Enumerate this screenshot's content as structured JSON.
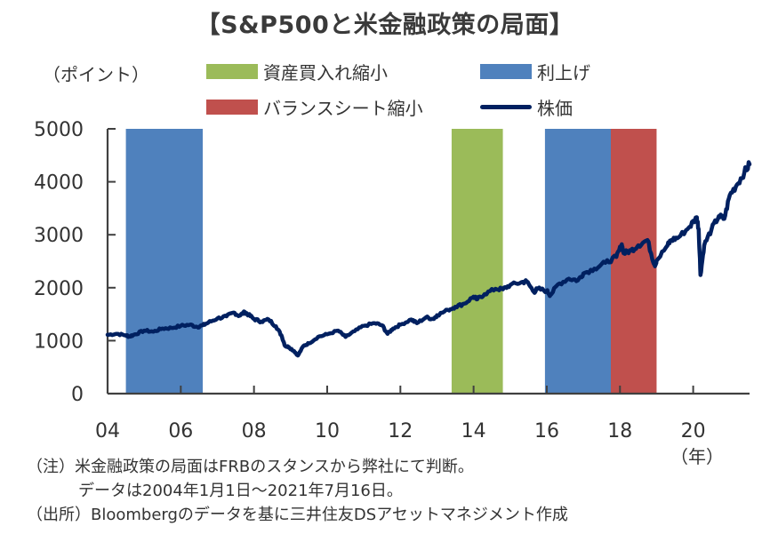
{
  "chart_data": {
    "type": "line",
    "title": "【S&P500と米金融政策の局面】",
    "ylabel": "（ポイント）",
    "xlabel": "（年）",
    "ylim": [
      0,
      5000
    ],
    "xlim": [
      2004.0,
      2021.54
    ],
    "yticks": [
      0,
      1000,
      2000,
      3000,
      4000,
      5000
    ],
    "ytick_labels": [
      "0",
      "1000",
      "2000",
      "3000",
      "4000",
      "5000"
    ],
    "xticks": [
      2004,
      2006,
      2008,
      2010,
      2012,
      2014,
      2016,
      2018,
      2020
    ],
    "xtick_labels": [
      "04",
      "06",
      "08",
      "10",
      "12",
      "14",
      "16",
      "18",
      "20"
    ],
    "grid": false,
    "legend_position": "top",
    "legend": [
      {
        "label": "資産買入れ縮小",
        "kind": "band",
        "color": "#9bbb59"
      },
      {
        "label": "利上げ",
        "kind": "band",
        "color": "#4f81bd"
      },
      {
        "label": "バランスシート縮小",
        "kind": "band",
        "color": "#c0504d"
      },
      {
        "label": "株価",
        "kind": "line",
        "color": "#002060"
      }
    ],
    "bands": [
      {
        "name": "利上げ",
        "start": 2004.5,
        "end": 2006.6,
        "color": "#4f81bd"
      },
      {
        "name": "資産買入れ縮小",
        "start": 2013.4,
        "end": 2014.8,
        "color": "#9bbb59"
      },
      {
        "name": "利上げ",
        "start": 2015.95,
        "end": 2017.75,
        "color": "#4f81bd"
      },
      {
        "name": "バランスシート縮小",
        "start": 2017.75,
        "end": 2019.0,
        "color": "#c0504d"
      }
    ],
    "series": [
      {
        "name": "株価",
        "color": "#002060",
        "x": [
          2004.0,
          2004.25,
          2004.5,
          2004.6,
          2004.75,
          2005.0,
          2005.25,
          2005.5,
          2005.75,
          2006.0,
          2006.25,
          2006.45,
          2006.6,
          2006.75,
          2007.0,
          2007.25,
          2007.45,
          2007.6,
          2007.75,
          2007.85,
          2008.0,
          2008.2,
          2008.4,
          2008.6,
          2008.75,
          2008.85,
          2008.95,
          2009.1,
          2009.2,
          2009.35,
          2009.5,
          2009.75,
          2010.0,
          2010.3,
          2010.5,
          2010.75,
          2011.0,
          2011.3,
          2011.5,
          2011.65,
          2011.8,
          2012.0,
          2012.3,
          2012.45,
          2012.7,
          2012.9,
          2013.0,
          2013.3,
          2013.5,
          2013.75,
          2014.0,
          2014.1,
          2014.3,
          2014.6,
          2014.8,
          2015.0,
          2015.3,
          2015.45,
          2015.65,
          2015.75,
          2016.0,
          2016.1,
          2016.3,
          2016.6,
          2016.85,
          2017.0,
          2017.3,
          2017.6,
          2017.9,
          2018.05,
          2018.1,
          2018.3,
          2018.5,
          2018.75,
          2018.95,
          2019.0,
          2019.3,
          2019.4,
          2019.6,
          2019.9,
          2020.1,
          2020.15,
          2020.2,
          2020.3,
          2020.5,
          2020.7,
          2020.85,
          2021.0,
          2021.2,
          2021.4,
          2021.54
        ],
        "values": [
          1110,
          1130,
          1100,
          1080,
          1120,
          1190,
          1170,
          1230,
          1240,
          1280,
          1300,
          1260,
          1290,
          1340,
          1420,
          1460,
          1530,
          1470,
          1540,
          1490,
          1410,
          1360,
          1400,
          1270,
          1100,
          900,
          880,
          800,
          720,
          900,
          950,
          1070,
          1120,
          1190,
          1070,
          1180,
          1280,
          1330,
          1290,
          1130,
          1230,
          1300,
          1400,
          1330,
          1440,
          1410,
          1480,
          1580,
          1640,
          1700,
          1830,
          1780,
          1880,
          1980,
          1970,
          2050,
          2100,
          2120,
          1920,
          1980,
          1940,
          1860,
          2060,
          2170,
          2140,
          2270,
          2360,
          2470,
          2580,
          2820,
          2650,
          2700,
          2800,
          2900,
          2420,
          2510,
          2800,
          2900,
          2950,
          3150,
          3330,
          3100,
          2240,
          2800,
          3100,
          3350,
          3300,
          3750,
          3950,
          4180,
          4330
        ]
      }
    ],
    "notes": {
      "year_unit": "（年）",
      "note1": "（注）米金融政策の局面はFRBのスタンスから弊社にて判断。",
      "note2": "データは2004年1月1日～2021年7月16日。",
      "source": "（出所）Bloombergのデータを基に三井住友DSアセットマネジメント作成"
    }
  }
}
